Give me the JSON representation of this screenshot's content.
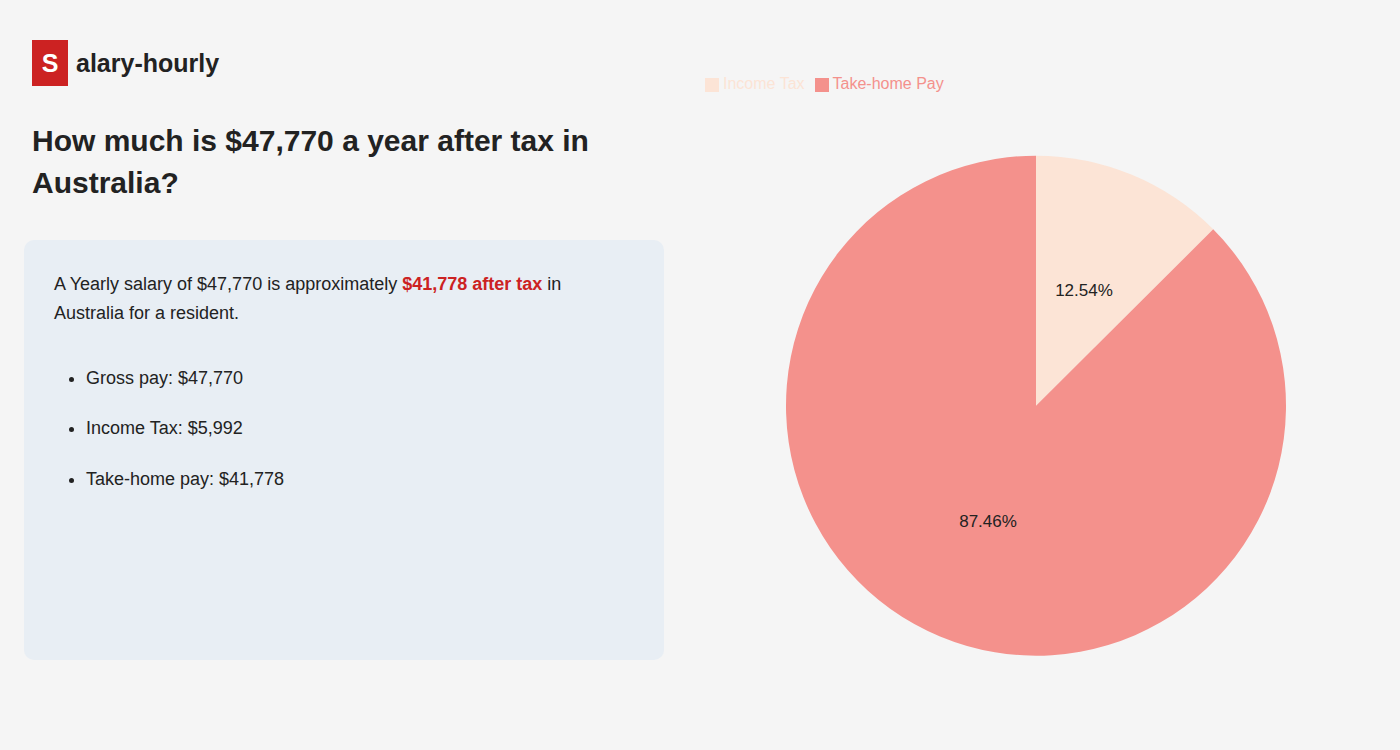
{
  "chart_data": {
    "type": "pie",
    "title": "How much is $47,770 a year after tax in Australia?",
    "categories": [
      "Income Tax",
      "Take-home Pay"
    ],
    "values": [
      12.54,
      87.46
    ],
    "value_labels": [
      "12.54%",
      "87.46%"
    ],
    "colors": [
      "#fce4d6",
      "#f4918c"
    ],
    "data_labels": true,
    "legend": "top-left",
    "annotations": [
      [
        {
          "text": "S",
          "color": "#cc2222"
        },
        {
          "text": "alary-hourly"
        }
      ],
      [
        {
          "text": "A Yearly salary of $47,770 is approximately "
        },
        {
          "text": "$41,778 after tax",
          "color": "#cc2222"
        },
        {
          "text": " in"
        }
      ],
      [
        {
          "text": "Australia for a resident."
        }
      ],
      [
        {
          "text": "Gross pay: $47,770"
        }
      ],
      [
        {
          "text": "Income Tax: $5,992"
        }
      ],
      [
        {
          "text": "Take-home pay: $41,778"
        }
      ]
    ]
  }
}
